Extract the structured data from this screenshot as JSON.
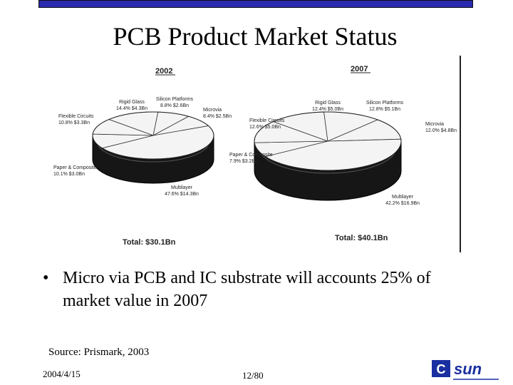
{
  "slide": {
    "title": "PCB Product Market Status",
    "bullet_char": "•",
    "bullet": "Micro via PCB and IC substrate will accounts 25% of market value in 2007",
    "source": "Source: Prismark, 2003",
    "date": "2004/4/15",
    "page": "12/80",
    "logo_text": "sun",
    "logo_letter": "C",
    "colors": {
      "topbar": "#2a2ab0",
      "logo": "#1a2fa0"
    }
  },
  "chart_data": [
    {
      "type": "pie",
      "title": "2002",
      "total_label": "Total: $30.1Bn",
      "slices": [
        {
          "name": "Rigid Glass",
          "pct": "14.4%",
          "value_label": "$4.3Bn",
          "value": 4.3
        },
        {
          "name": "Silicon Platforms",
          "pct": "8.8%",
          "value_label": "$2.6Bn",
          "value": 2.6
        },
        {
          "name": "Microvia",
          "pct": "8.4%",
          "value_label": "$2.5Bn",
          "value": 2.5
        },
        {
          "name": "Multilayer",
          "pct": "47.6%",
          "value_label": "$14.3Bn",
          "value": 14.3
        },
        {
          "name": "Paper & Composite",
          "pct": "10.1%",
          "value_label": "$3.0Bn",
          "value": 3.0
        },
        {
          "name": "Flexible Circuits",
          "pct": "10.8%",
          "value_label": "$3.3Bn",
          "value": 3.3
        }
      ]
    },
    {
      "type": "pie",
      "title": "2007",
      "total_label": "Total: $40.1Bn",
      "slices": [
        {
          "name": "Rigid Glass",
          "pct": "12.4%",
          "value_label": "$5.0Bn",
          "value": 5.0
        },
        {
          "name": "Silicon Platforms",
          "pct": "12.8%",
          "value_label": "$5.1Bn",
          "value": 5.1
        },
        {
          "name": "Microvia",
          "pct": "12.0%",
          "value_label": "$4.8Bn",
          "value": 4.8
        },
        {
          "name": "Multilayer",
          "pct": "42.2%",
          "value_label": "$16.9Bn",
          "value": 16.9
        },
        {
          "name": "Paper & Composite",
          "pct": "7.9%",
          "value_label": "$3.2Bn",
          "value": 3.2
        },
        {
          "name": "Flexible Circuits",
          "pct": "12.6%",
          "value_label": "$5.0Bn",
          "value": 5.0
        }
      ]
    }
  ]
}
